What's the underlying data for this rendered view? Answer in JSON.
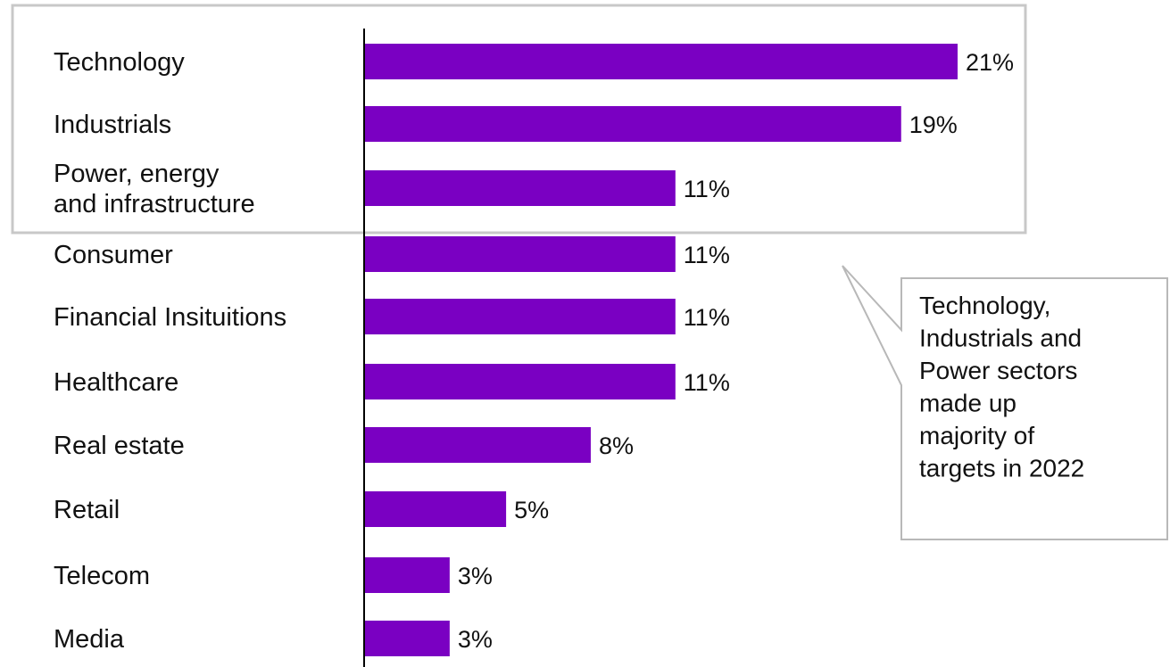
{
  "chart_data": {
    "type": "bar",
    "orientation": "horizontal",
    "categories": [
      "Technology",
      "Industrials",
      "Power, energy\nand infrastructure",
      "Consumer",
      "Financial Insituitions",
      "Healthcare",
      "Real estate",
      "Retail",
      "Telecom",
      "Media"
    ],
    "values": [
      21,
      19,
      11,
      11,
      11,
      11,
      8,
      5,
      3,
      3
    ],
    "value_labels": [
      "21%",
      "19%",
      "11%",
      "11%",
      "11%",
      "11%",
      "8%",
      "5%",
      "3%",
      "3%"
    ],
    "unit": "%",
    "xlim": [
      0,
      21
    ],
    "grid": false,
    "bar_color": "#7a00c2",
    "highlight": {
      "categories": [
        "Technology",
        "Industrials",
        "Power, energy\nand infrastructure"
      ],
      "border_color": "#c8c8c8"
    },
    "annotation": {
      "lines": [
        "Technology,",
        "Industrials and",
        "Power sectors",
        "made up",
        "majority of",
        "targets in 2022"
      ],
      "border_color": "#b8b8b8"
    }
  }
}
